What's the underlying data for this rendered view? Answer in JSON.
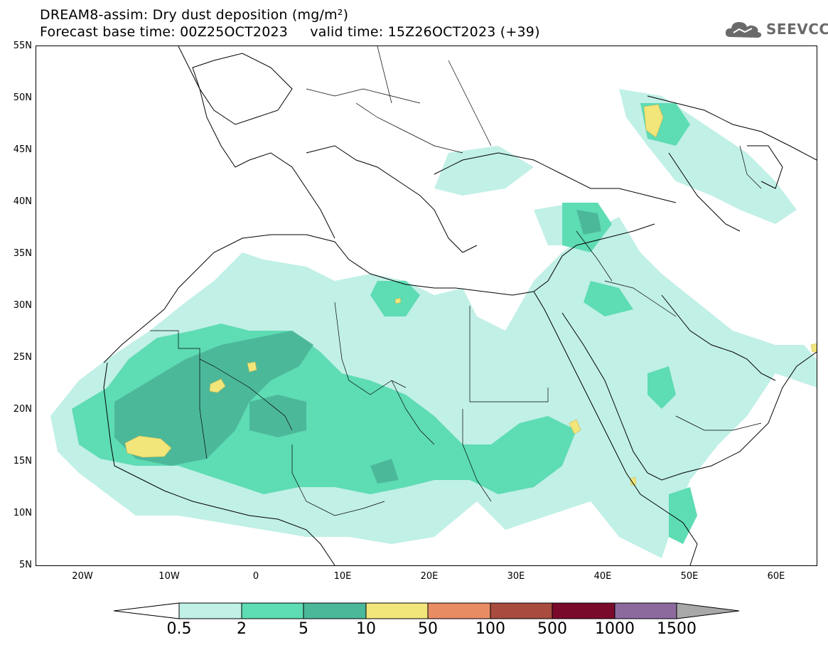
{
  "header": {
    "title_line1": "DREAM8-assim: Dry dust deposition (mg/m²)",
    "title_line2": "Forecast base time: 00Z25OCT2023     valid time: 15Z26OCT2023 (+39)"
  },
  "logo": {
    "text": "SEEVCCC",
    "icon": "cloud-icon"
  },
  "map": {
    "lat_ticks": [
      "55N",
      "50N",
      "45N",
      "40N",
      "35N",
      "30N",
      "25N",
      "20N",
      "15N",
      "10N",
      "5N"
    ],
    "lon_ticks": [
      "20W",
      "10W",
      "0",
      "10E",
      "20E",
      "30E",
      "40E",
      "50E",
      "60E"
    ],
    "extent": {
      "lon_min": -25,
      "lon_max": 65,
      "lat_min": 5,
      "lat_max": 55
    }
  },
  "colorbar": {
    "labels": [
      "0.5",
      "2",
      "5",
      "10",
      "50",
      "100",
      "500",
      "1000",
      "1500"
    ],
    "colors": [
      "#ffffff",
      "#c1f0e6",
      "#5edcb4",
      "#4cb89a",
      "#f2e57a",
      "#e88c64",
      "#a84c40",
      "#7a0a2c",
      "#8c6a9e",
      "#a8a8a8"
    ]
  }
}
